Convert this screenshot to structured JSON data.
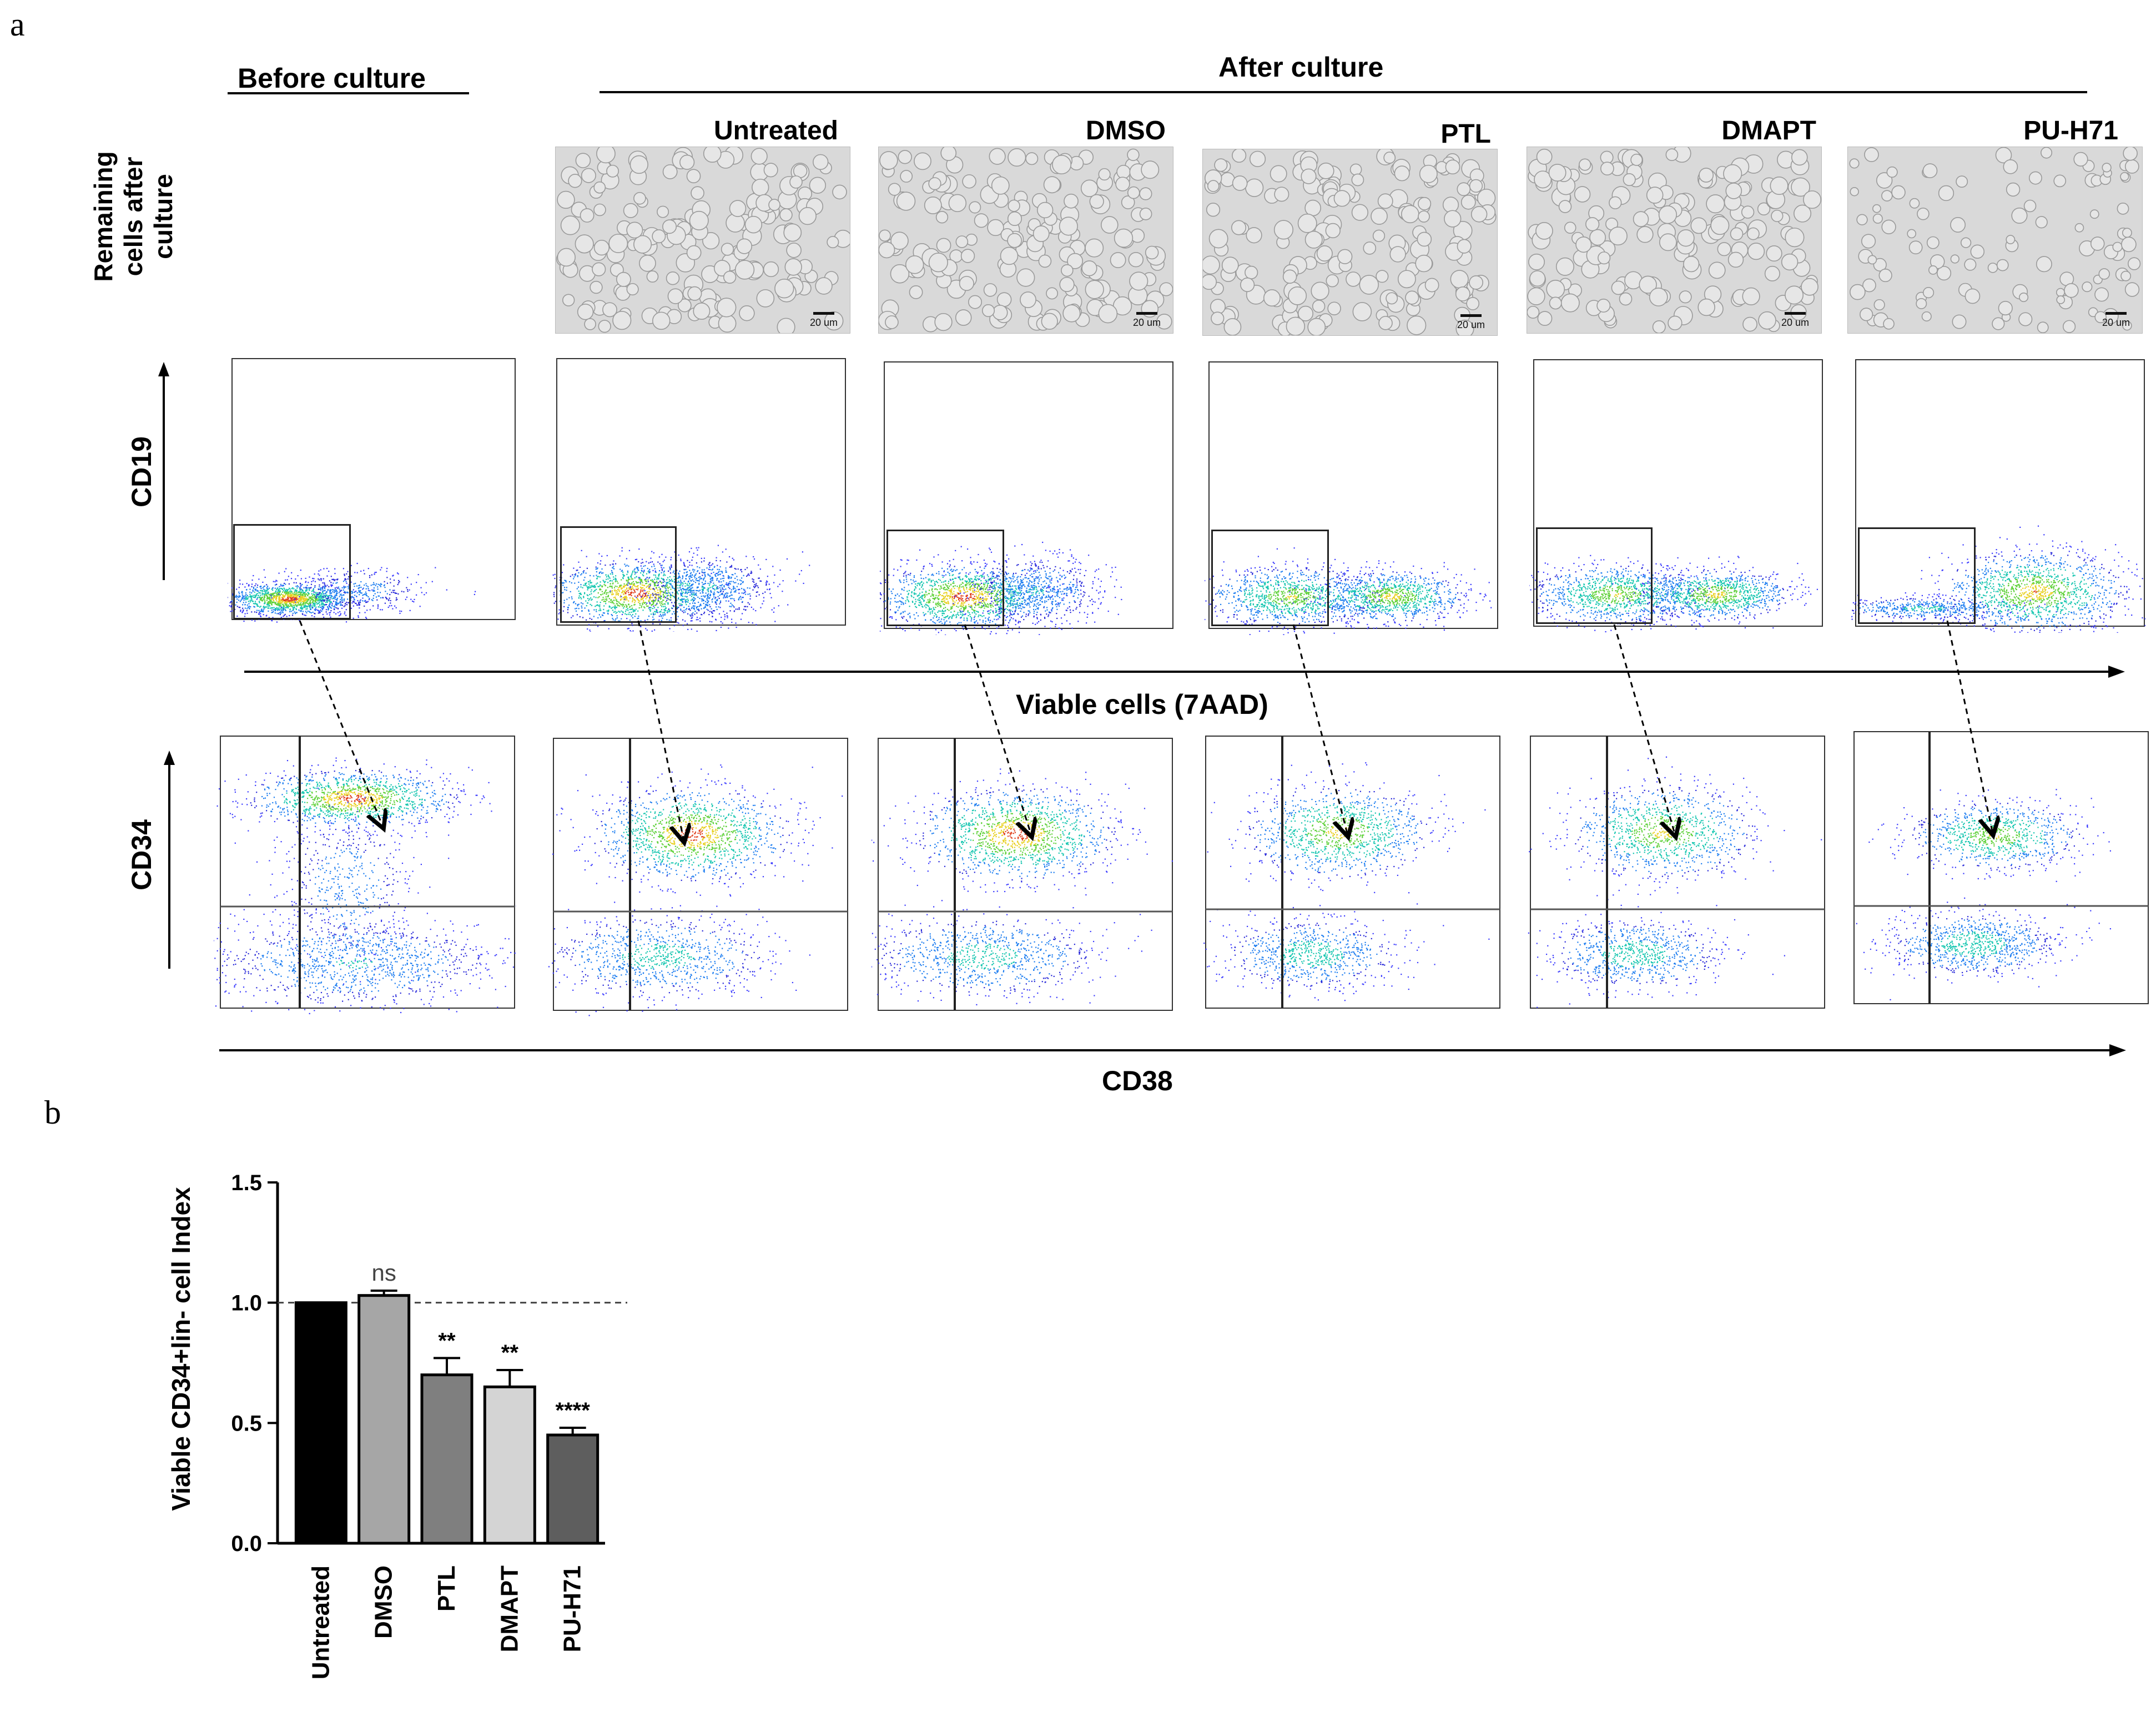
{
  "panel_a": {
    "letter": "a",
    "before_culture": "Before culture",
    "after_culture": "After culture",
    "conditions": [
      "Untreated",
      "DMSO",
      "PTL",
      "DMAPT",
      "PU-H71"
    ],
    "row_label_microscopy": [
      "Remaining",
      "cells after",
      "culture"
    ],
    "scale_bar_label": "20 um",
    "cd19_label": "CD19",
    "viable_label": "Viable cells (7AAD)",
    "cd34_label": "CD34",
    "cd38_label": "CD38"
  },
  "panel_b": {
    "letter": "b",
    "significance": [
      "",
      "ns",
      "**",
      "**",
      "****"
    ]
  },
  "chart_data": {
    "type": "bar",
    "title": "",
    "xlabel": "",
    "ylabel": "Viable CD34+lin- cell Index",
    "categories": [
      "Untreated",
      "DMSO",
      "PTL",
      "DMAPT",
      "PU-H71"
    ],
    "values": [
      1.0,
      1.03,
      0.7,
      0.65,
      0.45
    ],
    "errors": [
      0.0,
      0.02,
      0.07,
      0.07,
      0.03
    ],
    "bar_colors": [
      "#000000",
      "#a6a6a6",
      "#7f7f7f",
      "#d4d4d4",
      "#5e5e5e"
    ],
    "reference_line": 1.0,
    "ylim": [
      0,
      1.5
    ],
    "yticks": [
      "0.0",
      "0.5",
      "1.0",
      "1.5"
    ],
    "grid": false
  }
}
